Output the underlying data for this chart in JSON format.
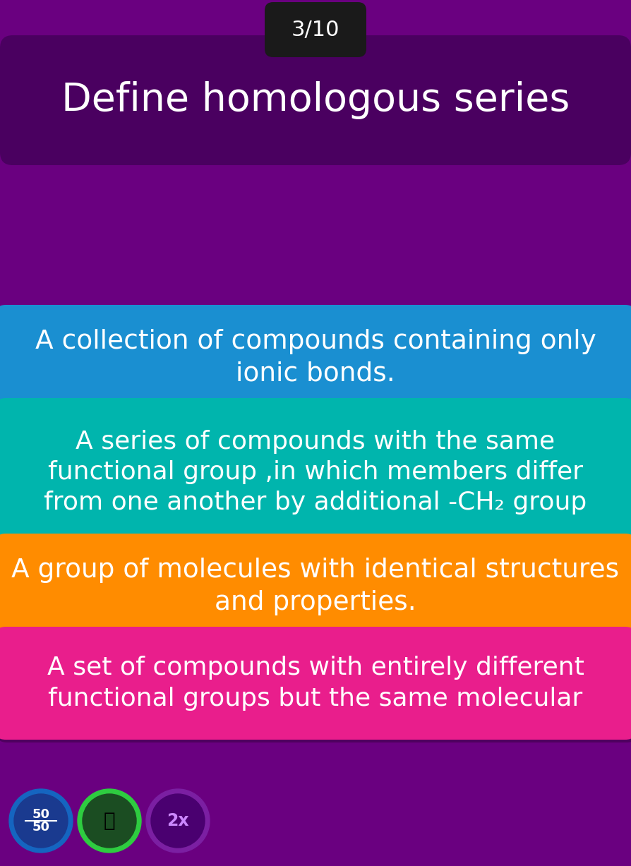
{
  "background_color": "#6a0080",
  "title_text": "Define homologous series",
  "counter_text": "3/10",
  "title_box_color": "#4a0060",
  "counter_box_color": "#1a1a1a",
  "options": [
    {
      "text": "A collection of compounds containing only\nionic bonds.",
      "bg_color": "#1a8fd1",
      "text_color": "#ffffff"
    },
    {
      "text": "A series of compounds with the same\nfunctional group ,in which members differ\nfrom one another by additional -CH₂ group",
      "bg_color": "#00b5ad",
      "text_color": "#ffffff"
    },
    {
      "text": "A group of molecules with identical structures\nand properties.",
      "bg_color": "#ff8c00",
      "text_color": "#ffffff"
    },
    {
      "text": "A set of compounds with entirely different\nfunctional groups but the same molecular",
      "bg_color": "#e91e8c",
      "text_color": "#ffffff"
    }
  ],
  "icon_50_outer": "#1565c0",
  "icon_50_inner": "#1a3a8f",
  "icon_mask_outer": "#2ecc40",
  "icon_mask_inner": "#1b4d22",
  "icon_2x_outer": "#7b1fa2",
  "icon_2x_inner": "#4a0070",
  "icon_2x_text_color": "#cc88ff"
}
